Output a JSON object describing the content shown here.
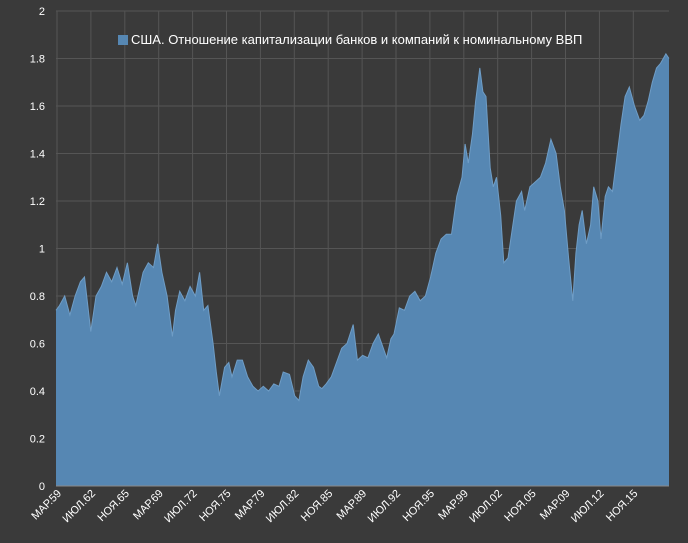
{
  "chart_data": {
    "type": "area",
    "title": "",
    "xlabel": "",
    "ylabel": "",
    "ylim": [
      0,
      2
    ],
    "yticks": [
      "0",
      "0.2",
      "0.4",
      "0.6",
      "0.8",
      "1",
      "1.2",
      "1.4",
      "1.6",
      "1.8",
      "2"
    ],
    "xticks": [
      "МАР.59",
      "ИЮЛ.62",
      "НОЯ.65",
      "МАР.69",
      "ИЮЛ.72",
      "НОЯ.75",
      "МАР.79",
      "ИЮЛ.82",
      "НОЯ.85",
      "МАР.89",
      "ИЮЛ.92",
      "НОЯ.95",
      "МАР.99",
      "ИЮЛ.02",
      "НОЯ.05",
      "МАР.09",
      "ИЮЛ.12",
      "НОЯ.15"
    ],
    "grid": true,
    "legend_position": "top-center",
    "series": [
      {
        "name": "США. Отношение капитализации банков и компаний к номинальному ВВП",
        "color": "#5687b3",
        "x": [
          1959.17,
          1959.5,
          1960.0,
          1960.5,
          1961.0,
          1961.5,
          1961.9,
          1962.5,
          1963.0,
          1963.5,
          1964.0,
          1964.5,
          1965.0,
          1965.5,
          1966.0,
          1966.5,
          1966.8,
          1967.5,
          1968.0,
          1968.5,
          1968.9,
          1969.3,
          1969.8,
          1970.3,
          1970.6,
          1971.0,
          1971.5,
          1972.0,
          1972.5,
          1972.9,
          1973.3,
          1973.7,
          1974.2,
          1974.5,
          1974.8,
          1975.3,
          1975.7,
          1976.0,
          1976.5,
          1977.0,
          1977.5,
          1978.0,
          1978.5,
          1979.0,
          1979.5,
          1980.0,
          1980.5,
          1980.9,
          1981.5,
          1982.0,
          1982.4,
          1982.8,
          1983.3,
          1983.8,
          1984.3,
          1984.6,
          1985.0,
          1985.5,
          1986.0,
          1986.5,
          1987.0,
          1987.6,
          1988.0,
          1988.5,
          1989.0,
          1989.5,
          1990.0,
          1990.8,
          1991.2,
          1991.5,
          1992.0,
          1992.5,
          1993.0,
          1993.5,
          1994.0,
          1994.5,
          1995.0,
          1995.5,
          1996.0,
          1996.5,
          1997.0,
          1997.5,
          1998.0,
          1998.3,
          1998.6,
          1999.0,
          1999.3,
          1999.7,
          2000.0,
          2000.3,
          2000.7,
          2001.0,
          2001.3,
          2001.7,
          2002.0,
          2002.4,
          2002.8,
          2003.2,
          2003.7,
          2004.0,
          2004.5,
          2005.0,
          2005.5,
          2006.0,
          2006.5,
          2007.0,
          2007.4,
          2007.8,
          2008.2,
          2008.6,
          2008.9,
          2009.2,
          2009.5,
          2009.9,
          2010.3,
          2010.6,
          2011.0,
          2011.3,
          2011.7,
          2012.0,
          2012.4,
          2012.8,
          2013.2,
          2013.6,
          2014.0,
          2014.5,
          2015.0,
          2015.4,
          2015.8,
          2016.2,
          2016.6,
          2017.0,
          2017.5,
          2017.8
        ],
        "values": [
          0.74,
          0.76,
          0.8,
          0.72,
          0.8,
          0.86,
          0.88,
          0.65,
          0.8,
          0.84,
          0.9,
          0.86,
          0.92,
          0.85,
          0.94,
          0.8,
          0.76,
          0.9,
          0.94,
          0.92,
          1.02,
          0.9,
          0.8,
          0.63,
          0.74,
          0.82,
          0.78,
          0.84,
          0.8,
          0.9,
          0.74,
          0.76,
          0.6,
          0.48,
          0.38,
          0.5,
          0.52,
          0.46,
          0.53,
          0.53,
          0.46,
          0.42,
          0.4,
          0.42,
          0.4,
          0.43,
          0.42,
          0.48,
          0.47,
          0.38,
          0.36,
          0.46,
          0.53,
          0.5,
          0.42,
          0.41,
          0.43,
          0.46,
          0.52,
          0.58,
          0.6,
          0.68,
          0.53,
          0.55,
          0.54,
          0.6,
          0.64,
          0.54,
          0.62,
          0.64,
          0.75,
          0.74,
          0.8,
          0.82,
          0.78,
          0.8,
          0.88,
          0.98,
          1.04,
          1.06,
          1.06,
          1.22,
          1.3,
          1.44,
          1.36,
          1.48,
          1.62,
          1.76,
          1.66,
          1.64,
          1.34,
          1.26,
          1.3,
          1.14,
          0.94,
          0.96,
          1.08,
          1.2,
          1.24,
          1.16,
          1.26,
          1.28,
          1.3,
          1.36,
          1.46,
          1.4,
          1.26,
          1.16,
          0.96,
          0.78,
          0.98,
          1.1,
          1.16,
          1.02,
          1.1,
          1.26,
          1.2,
          1.04,
          1.22,
          1.26,
          1.24,
          1.38,
          1.52,
          1.64,
          1.68,
          1.6,
          1.54,
          1.56,
          1.62,
          1.7,
          1.76,
          1.78,
          1.82,
          1.8
        ]
      }
    ]
  }
}
